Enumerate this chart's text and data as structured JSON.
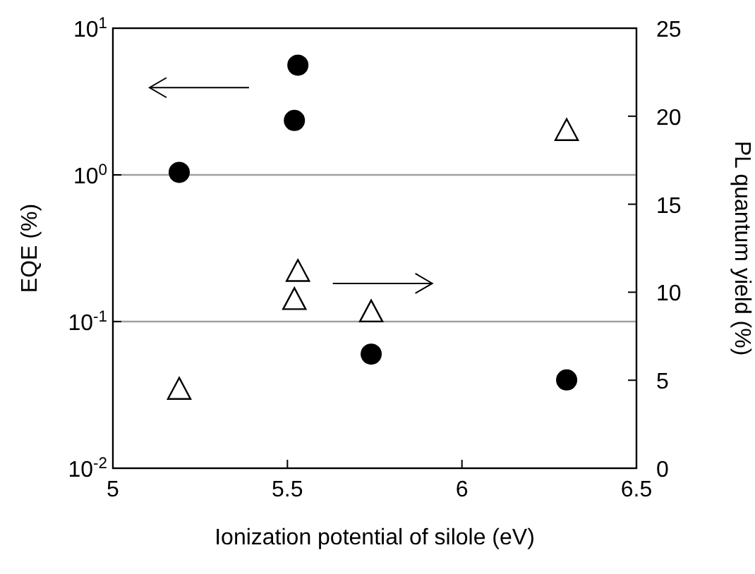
{
  "chart_data": {
    "type": "scatter",
    "xlabel": "Ionization potential of silole  (eV)",
    "ylabel": "EQE (%)",
    "y2label": "PL quantum  yield (%)",
    "xlim": [
      5,
      6.5
    ],
    "xticks": [
      5,
      5.5,
      6,
      6.5
    ],
    "log": "y",
    "ylim": [
      0.01,
      10
    ],
    "yticks": [
      {
        "value": 0.01,
        "label": "10$^{-2}$"
      },
      {
        "value": 0.1,
        "label": "10$^{-1}$"
      },
      {
        "value": 1,
        "label": "10$^{0}$"
      },
      {
        "value": 10,
        "label": "10$^{1}$"
      }
    ],
    "y2lim": [
      0,
      25
    ],
    "y2ticks": [
      0,
      5,
      10,
      15,
      20,
      25
    ],
    "grid": "y",
    "series": [
      {
        "color": "#000000",
        "marker": "circle",
        "x": [
          5.19,
          5.52,
          5.53,
          5.74,
          6.3
        ],
        "values": [
          1.04,
          2.35,
          5.6,
          0.06,
          0.04
        ]
      },
      {
        "color": "#000000",
        "marker": "triangle",
        "axis": "y2",
        "x": [
          5.19,
          5.53,
          5.52,
          5.74,
          6.3
        ],
        "values": [
          4.5,
          11.2,
          9.6,
          8.9,
          19.2
        ]
      }
    ]
  }
}
